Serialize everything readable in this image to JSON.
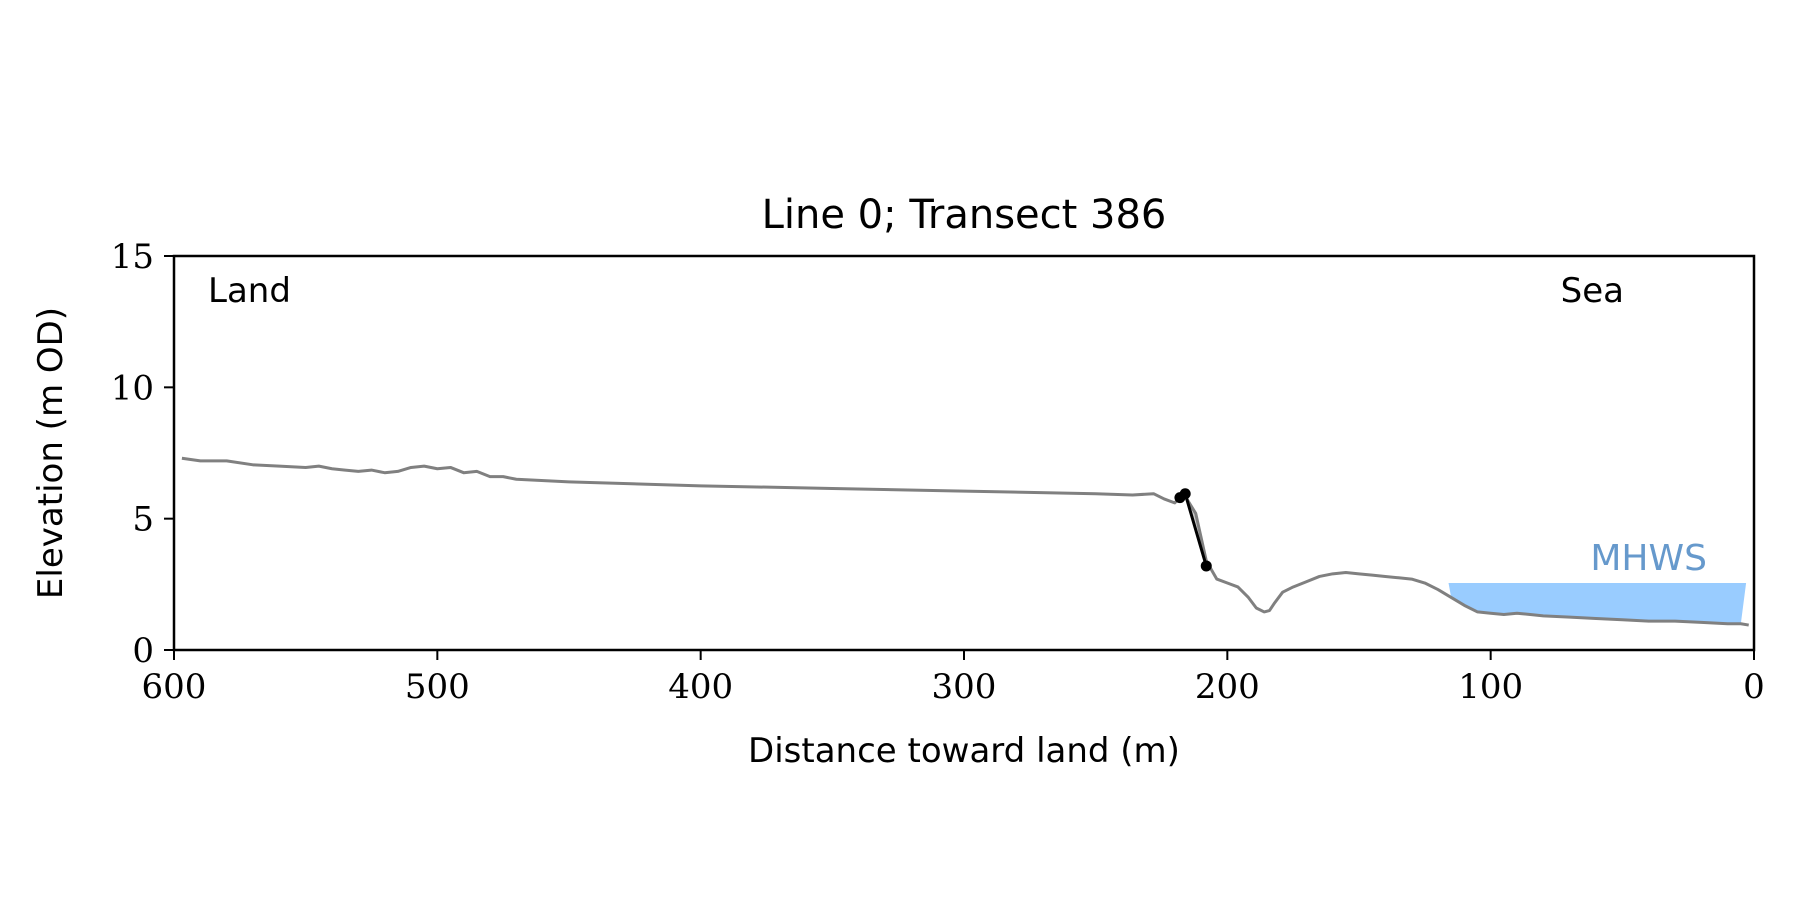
{
  "chart_data": {
    "type": "line",
    "title": "Line 0; Transect 386",
    "xlabel": "Distance toward land (m)",
    "ylabel": "Elevation (m OD)",
    "xlim": [
      600,
      0
    ],
    "ylim": [
      0,
      15
    ],
    "x_ticks": [
      "600",
      "500",
      "400",
      "300",
      "200",
      "100",
      "0"
    ],
    "y_ticks": [
      "0",
      "5",
      "10",
      "15"
    ],
    "x_tick_values": [
      600,
      500,
      400,
      300,
      200,
      100,
      0
    ],
    "y_tick_values": [
      0,
      5,
      10,
      15
    ],
    "annotations": {
      "left": "Land",
      "right": "Sea"
    },
    "grid": false,
    "colors": {
      "profile": "#808080",
      "cliff": "#000000",
      "mhws_fill": "#99ccff",
      "mhws_text": "#6699cc",
      "cliff_shade": "#cccccc"
    },
    "series": [
      {
        "x": [
          597,
          590,
          580,
          570,
          560,
          550,
          545,
          540,
          535,
          530,
          525,
          520,
          515,
          510,
          505,
          500,
          495,
          490,
          485,
          480,
          475,
          470,
          450,
          400,
          350,
          300,
          250,
          236,
          228,
          224,
          220,
          218,
          216,
          212,
          208,
          204,
          200,
          196,
          192,
          189,
          186,
          184,
          182,
          179,
          175,
          170,
          165,
          160,
          155,
          150,
          145,
          140,
          135,
          130,
          125,
          120,
          115,
          110,
          105,
          100,
          95,
          90,
          85,
          80,
          70,
          60,
          50,
          40,
          30,
          20,
          10,
          5,
          2
        ],
        "y": [
          7.3,
          7.2,
          7.2,
          7.05,
          7.0,
          6.95,
          7.0,
          6.9,
          6.85,
          6.8,
          6.85,
          6.75,
          6.8,
          6.95,
          7.0,
          6.9,
          6.95,
          6.75,
          6.8,
          6.6,
          6.6,
          6.5,
          6.4,
          6.25,
          6.15,
          6.05,
          5.95,
          5.9,
          5.95,
          5.75,
          5.6,
          5.8,
          5.85,
          5.2,
          3.4,
          2.7,
          2.55,
          2.4,
          2.0,
          1.6,
          1.45,
          1.5,
          1.8,
          2.2,
          2.4,
          2.6,
          2.8,
          2.9,
          2.95,
          2.9,
          2.85,
          2.8,
          2.75,
          2.7,
          2.55,
          2.3,
          2.0,
          1.7,
          1.45,
          1.4,
          1.35,
          1.4,
          1.35,
          1.3,
          1.25,
          1.2,
          1.15,
          1.1,
          1.1,
          1.05,
          1.0,
          1.0,
          0.95
        ]
      },
      {
        "x": [
          218,
          216,
          208
        ],
        "y": [
          5.8,
          5.95,
          3.2
        ]
      }
    ],
    "mhws": {
      "label": "MHWS",
      "level": 2.55,
      "x_start": 116,
      "x_end": 3
    }
  }
}
